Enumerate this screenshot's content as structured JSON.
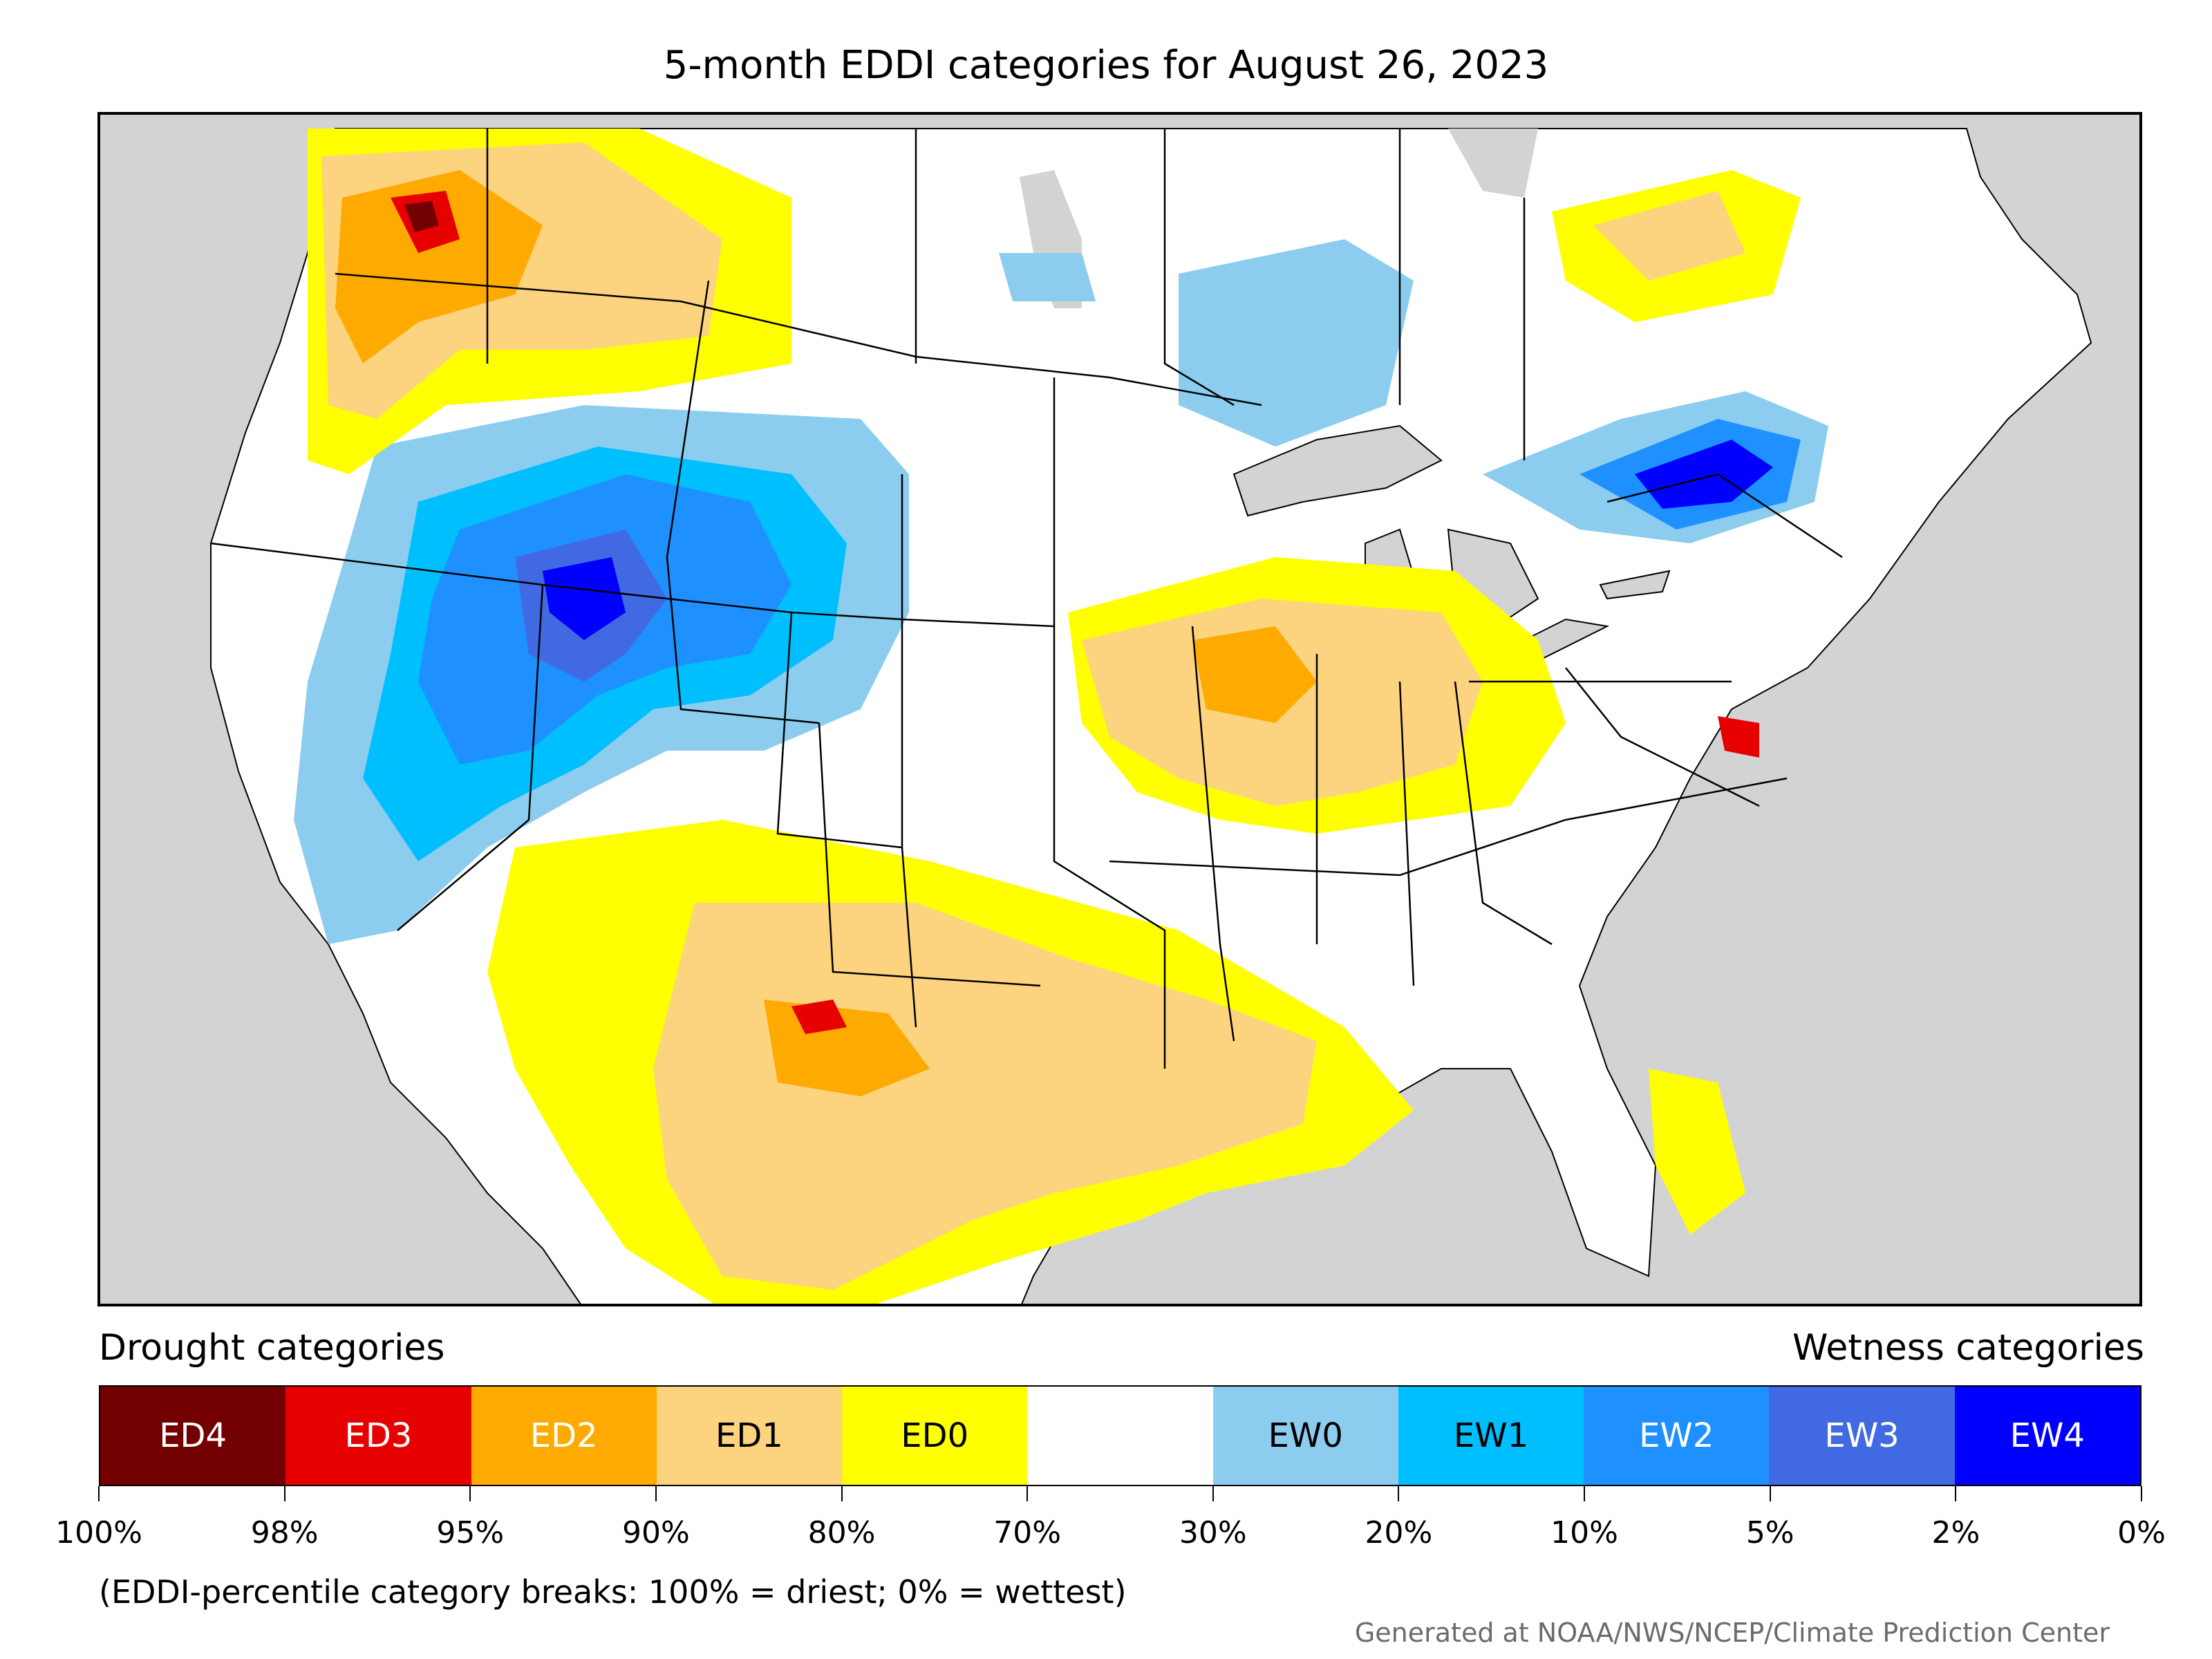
{
  "title": "5-month EDDI categories for August 26, 2023",
  "legend": {
    "drought_header": "Drought categories",
    "wetness_header": "Wetness categories",
    "categories": [
      {
        "label": "ED4",
        "color": "#730000",
        "text_color": "#ffffff"
      },
      {
        "label": "ED3",
        "color": "#e60000",
        "text_color": "#ffffff"
      },
      {
        "label": "ED2",
        "color": "#ffaa00",
        "text_color": "#ffffff"
      },
      {
        "label": "ED1",
        "color": "#fcd37f",
        "text_color": "#000000"
      },
      {
        "label": "ED0",
        "color": "#ffff00",
        "text_color": "#000000"
      },
      {
        "label": "",
        "color": "#ffffff",
        "text_color": "#000000"
      },
      {
        "label": "EW0",
        "color": "#8ccdef",
        "text_color": "#000000"
      },
      {
        "label": "EW1",
        "color": "#00bfff",
        "text_color": "#000000"
      },
      {
        "label": "EW2",
        "color": "#1e90ff",
        "text_color": "#ffffff"
      },
      {
        "label": "EW3",
        "color": "#4169e1",
        "text_color": "#ffffff"
      },
      {
        "label": "EW4",
        "color": "#0000ff",
        "text_color": "#ffffff"
      }
    ],
    "tick_labels": [
      "100%",
      "98%",
      "95%",
      "90%",
      "80%",
      "70%",
      "30%",
      "20%",
      "10%",
      "5%",
      "2%",
      "0%"
    ]
  },
  "footnote": "(EDDI-percentile category breaks: 100% = driest; 0% = wettest)",
  "credit": "Generated at NOAA/NWS/NCEP/Climate Prediction Center",
  "map": {
    "background_color": "#d3d3d3",
    "land_color": "#ffffff",
    "water_color": "#d3d3d3"
  }
}
